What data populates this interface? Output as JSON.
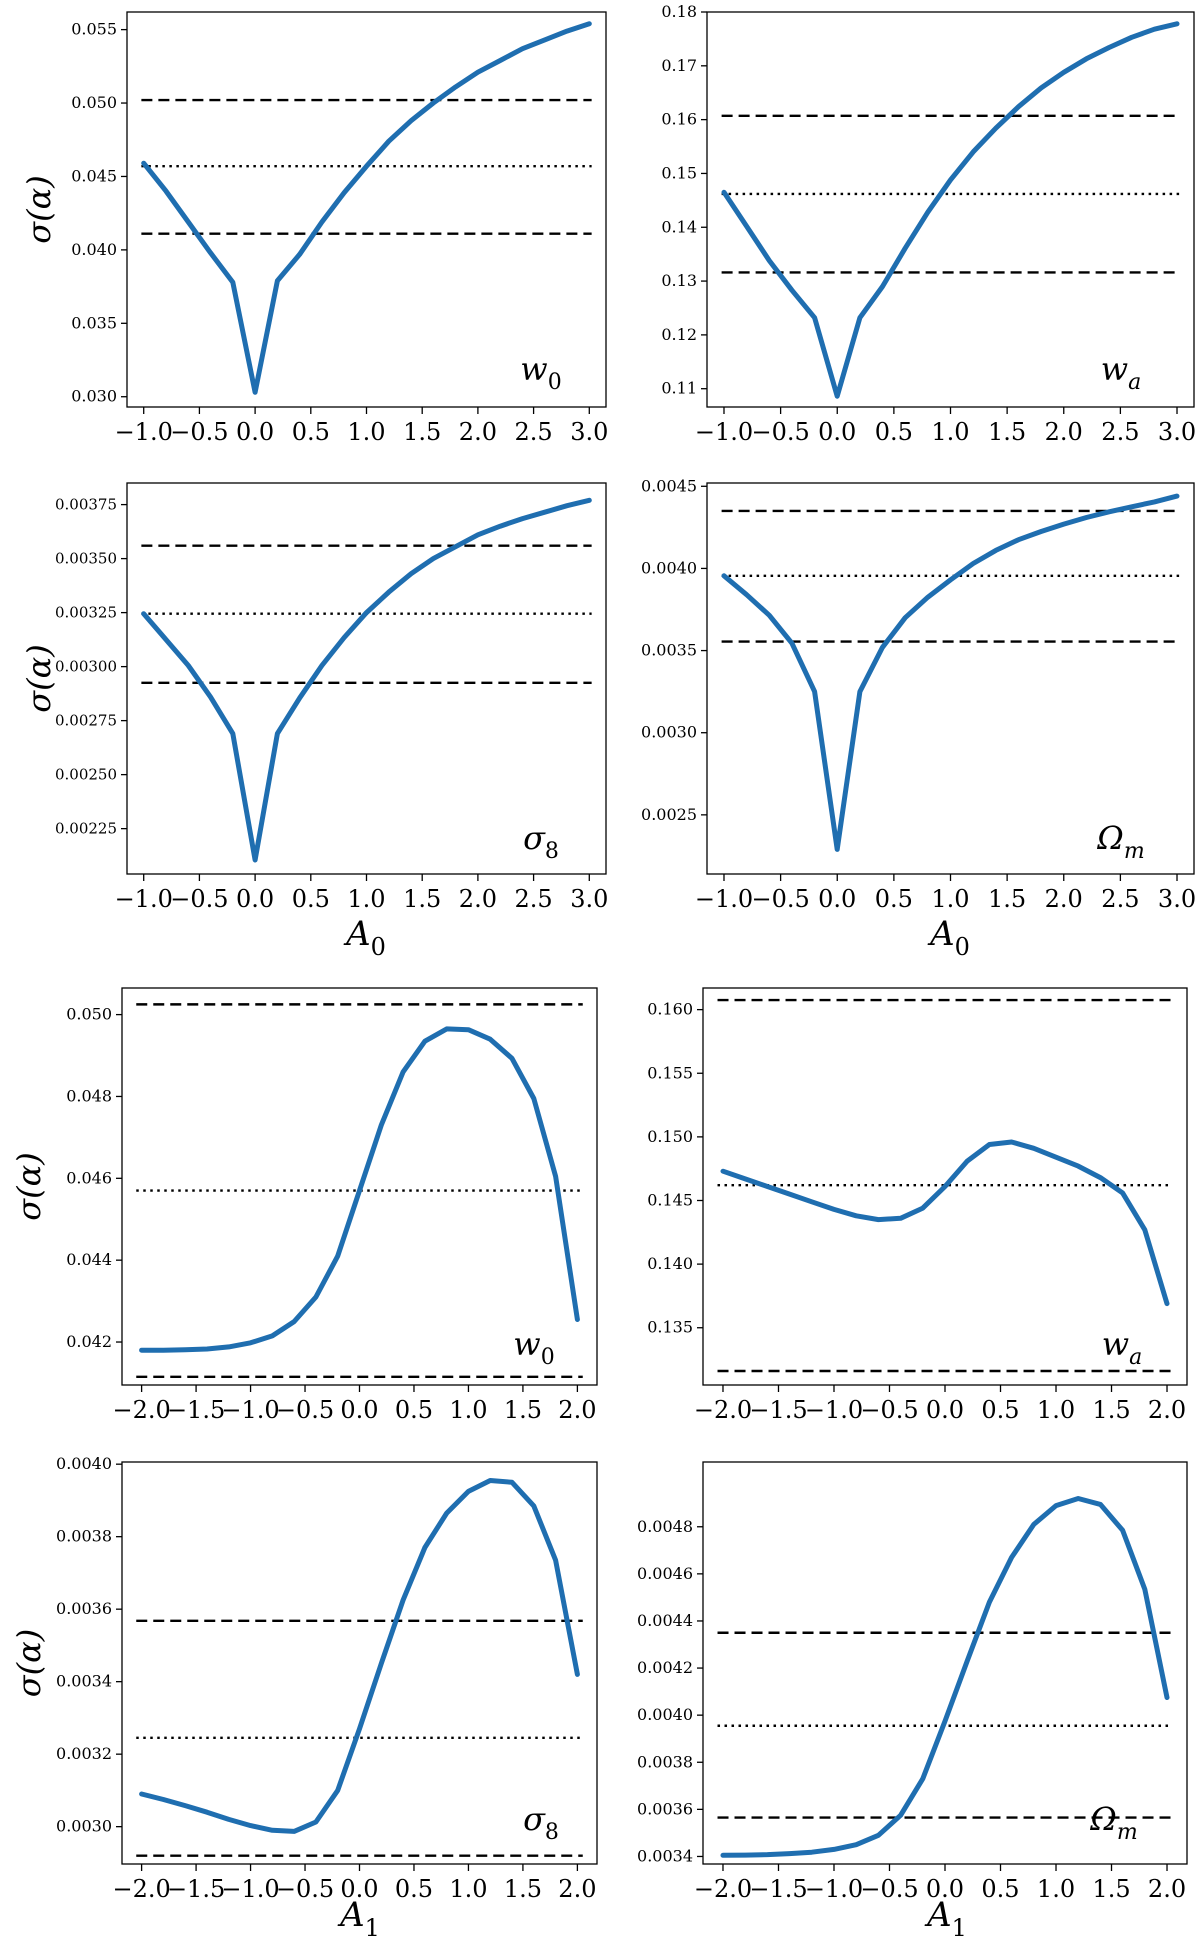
{
  "chart_data": [
    {
      "type": "line",
      "panel_label": "w0",
      "ylabel": "σ(α)",
      "xlabel": "",
      "xlim": [
        -1.15,
        3.15
      ],
      "ylim": [
        0.0293,
        0.0562
      ],
      "x_ticks": [
        "−1.0",
        "−0.5",
        "0.0",
        "0.5",
        "1.0",
        "1.5",
        "2.0",
        "2.5",
        "3.0"
      ],
      "y_ticks": [
        "0.030",
        "0.035",
        "0.040",
        "0.045",
        "0.050",
        "0.055"
      ],
      "reference_lines": {
        "upper_dashed": 0.0502,
        "dotted": 0.0457,
        "lower_dashed": 0.0411
      },
      "x": [
        -1.0,
        -0.8,
        -0.6,
        -0.4,
        -0.2,
        0.0,
        0.2,
        0.4,
        0.6,
        0.8,
        1.0,
        1.2,
        1.4,
        1.6,
        1.8,
        2.0,
        2.2,
        2.4,
        2.6,
        2.8,
        3.0
      ],
      "y": [
        0.0459,
        0.044,
        0.0419,
        0.0398,
        0.0378,
        0.0303,
        0.0379,
        0.0397,
        0.0419,
        0.0439,
        0.0457,
        0.0474,
        0.0488,
        0.05,
        0.0511,
        0.0521,
        0.0529,
        0.0537,
        0.0543,
        0.0549,
        0.0554
      ]
    },
    {
      "type": "line",
      "panel_label": "wa",
      "ylabel": "",
      "xlabel": "",
      "xlim": [
        -1.15,
        3.15
      ],
      "ylim": [
        0.1066,
        0.18
      ],
      "x_ticks": [
        "−1.0",
        "−0.5",
        "0.0",
        "0.5",
        "1.0",
        "1.5",
        "2.0",
        "2.5",
        "3.0"
      ],
      "y_ticks": [
        "0.11",
        "0.12",
        "0.13",
        "0.14",
        "0.15",
        "0.16",
        "0.17",
        "0.18"
      ],
      "reference_lines": {
        "upper_dashed": 0.1607,
        "dotted": 0.1462,
        "lower_dashed": 0.1316
      },
      "x": [
        -1.0,
        -0.8,
        -0.6,
        -0.4,
        -0.2,
        0.0,
        0.2,
        0.4,
        0.6,
        0.8,
        1.0,
        1.2,
        1.4,
        1.6,
        1.8,
        2.0,
        2.2,
        2.4,
        2.6,
        2.8,
        3.0
      ],
      "y": [
        0.1465,
        0.1402,
        0.1338,
        0.1283,
        0.1232,
        0.1086,
        0.1232,
        0.129,
        0.1361,
        0.1428,
        0.1488,
        0.154,
        0.1584,
        0.1624,
        0.1659,
        0.1688,
        0.1713,
        0.1734,
        0.1753,
        0.1768,
        0.1778
      ]
    },
    {
      "type": "line",
      "panel_label": "σ8",
      "ylabel": "σ(α)",
      "xlabel": "A0",
      "xlim": [
        -1.15,
        3.15
      ],
      "ylim": [
        0.00204,
        0.00385
      ],
      "x_ticks": [
        "−1.0",
        "−0.5",
        "0.0",
        "0.5",
        "1.0",
        "1.5",
        "2.0",
        "2.5",
        "3.0"
      ],
      "y_ticks": [
        "0.00225",
        "0.00250",
        "0.00275",
        "0.00300",
        "0.00325",
        "0.00350",
        "0.00375"
      ],
      "reference_lines": {
        "upper_dashed": 0.00356,
        "dotted": 0.003245,
        "lower_dashed": 0.002925
      },
      "x": [
        -1.0,
        -0.8,
        -0.6,
        -0.4,
        -0.2,
        0.0,
        0.2,
        0.4,
        0.6,
        0.8,
        1.0,
        1.2,
        1.4,
        1.6,
        1.8,
        2.0,
        2.2,
        2.4,
        2.6,
        2.8,
        3.0
      ],
      "y": [
        0.003245,
        0.003125,
        0.003005,
        0.00286,
        0.00269,
        0.002105,
        0.00269,
        0.002855,
        0.003005,
        0.003135,
        0.00325,
        0.003345,
        0.00343,
        0.0035,
        0.003555,
        0.00361,
        0.00365,
        0.003685,
        0.003715,
        0.003745,
        0.00377
      ]
    },
    {
      "type": "line",
      "panel_label": "Ωm",
      "ylabel": "",
      "xlabel": "A0",
      "xlim": [
        -1.15,
        3.15
      ],
      "ylim": [
        0.00214,
        0.00452
      ],
      "x_ticks": [
        "−1.0",
        "−0.5",
        "0.0",
        "0.5",
        "1.0",
        "1.5",
        "2.0",
        "2.5",
        "3.0"
      ],
      "y_ticks": [
        "0.0025",
        "0.0030",
        "0.0035",
        "0.0040",
        "0.0045"
      ],
      "reference_lines": {
        "upper_dashed": 0.00435,
        "dotted": 0.003955,
        "lower_dashed": 0.003555
      },
      "x": [
        -1.0,
        -0.8,
        -0.6,
        -0.4,
        -0.2,
        0.0,
        0.2,
        0.4,
        0.6,
        0.8,
        1.0,
        1.2,
        1.4,
        1.6,
        1.8,
        2.0,
        2.2,
        2.4,
        2.6,
        2.8,
        3.0
      ],
      "y": [
        0.003955,
        0.00384,
        0.003715,
        0.003545,
        0.00325,
        0.00229,
        0.00325,
        0.00352,
        0.0037,
        0.003825,
        0.00393,
        0.00403,
        0.00411,
        0.004175,
        0.004225,
        0.00427,
        0.00431,
        0.004345,
        0.004375,
        0.004405,
        0.00444
      ]
    },
    {
      "type": "line",
      "panel_label": "w0",
      "ylabel": "σ(α)",
      "xlabel": "",
      "xlim": [
        -2.18,
        2.18
      ],
      "ylim": [
        0.04095,
        0.05065
      ],
      "x_ticks": [
        "−2.0",
        "−1.5",
        "−1.0",
        "−0.5",
        "0.0",
        "0.5",
        "1.0",
        "1.5",
        "2.0"
      ],
      "y_ticks": [
        "0.042",
        "0.044",
        "0.046",
        "0.048",
        "0.050"
      ],
      "reference_lines": {
        "upper_dashed": 0.05025,
        "dotted": 0.0457,
        "lower_dashed": 0.04115
      },
      "x": [
        -2.0,
        -1.8,
        -1.6,
        -1.4,
        -1.2,
        -1.0,
        -0.8,
        -0.6,
        -0.4,
        -0.2,
        0.0,
        0.2,
        0.4,
        0.6,
        0.8,
        1.0,
        1.2,
        1.4,
        1.6,
        1.8,
        2.0
      ],
      "y": [
        0.0418,
        0.0418,
        0.04181,
        0.04183,
        0.04188,
        0.04198,
        0.04215,
        0.0425,
        0.0431,
        0.0441,
        0.0457,
        0.0473,
        0.0486,
        0.04935,
        0.04965,
        0.04963,
        0.0494,
        0.04893,
        0.04795,
        0.04605,
        0.04255
      ]
    },
    {
      "type": "line",
      "panel_label": "wa",
      "ylabel": "",
      "xlabel": "",
      "xlim": [
        -2.18,
        2.18
      ],
      "ylim": [
        0.1305,
        0.1617
      ],
      "x_ticks": [
        "−2.0",
        "−1.5",
        "−1.0",
        "−0.5",
        "0.0",
        "0.5",
        "1.0",
        "1.5",
        "2.0"
      ],
      "y_ticks": [
        "0.135",
        "0.140",
        "0.145",
        "0.150",
        "0.155",
        "0.160"
      ],
      "reference_lines": {
        "upper_dashed": 0.16075,
        "dotted": 0.1462,
        "lower_dashed": 0.1316
      },
      "x": [
        -2.0,
        -1.8,
        -1.6,
        -1.4,
        -1.2,
        -1.0,
        -0.8,
        -0.6,
        -0.4,
        -0.2,
        0.0,
        0.2,
        0.4,
        0.6,
        0.8,
        1.0,
        1.2,
        1.4,
        1.6,
        1.8,
        2.0
      ],
      "y": [
        0.1473,
        0.1467,
        0.1461,
        0.1455,
        0.1449,
        0.1443,
        0.1438,
        0.1435,
        0.1436,
        0.1444,
        0.1461,
        0.1481,
        0.1494,
        0.1496,
        0.1491,
        0.1484,
        0.1477,
        0.1468,
        0.1456,
        0.1427,
        0.1369
      ]
    },
    {
      "type": "line",
      "panel_label": "σ8",
      "ylabel": "σ(α)",
      "xlabel": "A1",
      "xlim": [
        -2.18,
        2.18
      ],
      "ylim": [
        0.002897,
        0.004006
      ],
      "x_ticks": [
        "−2.0",
        "−1.5",
        "−1.0",
        "−0.5",
        "0.0",
        "0.5",
        "1.0",
        "1.5",
        "2.0"
      ],
      "y_ticks": [
        "0.0030",
        "0.0032",
        "0.0034",
        "0.0036",
        "0.0038",
        "0.0040"
      ],
      "reference_lines": {
        "upper_dashed": 0.003568,
        "dotted": 0.003245,
        "lower_dashed": 0.00292
      },
      "x": [
        -2.0,
        -1.8,
        -1.6,
        -1.4,
        -1.2,
        -1.0,
        -0.8,
        -0.6,
        -0.4,
        -0.2,
        0.0,
        0.2,
        0.4,
        0.6,
        0.8,
        1.0,
        1.2,
        1.4,
        1.6,
        1.8,
        2.0
      ],
      "y": [
        0.00309,
        0.003075,
        0.003058,
        0.00304,
        0.00302,
        0.003003,
        0.00299,
        0.002987,
        0.003013,
        0.0031,
        0.00327,
        0.00345,
        0.003625,
        0.00377,
        0.003865,
        0.003925,
        0.003955,
        0.00395,
        0.003885,
        0.003735,
        0.00342
      ]
    },
    {
      "type": "line",
      "panel_label": "Ωm",
      "ylabel": "",
      "xlabel": "A1",
      "xlim": [
        -2.18,
        2.18
      ],
      "ylim": [
        0.003368,
        0.005075
      ],
      "x_ticks": [
        "−2.0",
        "−1.5",
        "−1.0",
        "−0.5",
        "0.0",
        "0.5",
        "1.0",
        "1.5",
        "2.0"
      ],
      "y_ticks": [
        "0.0034",
        "0.0036",
        "0.0038",
        "0.0040",
        "0.0042",
        "0.0044",
        "0.0046",
        "0.0048"
      ],
      "reference_lines": {
        "upper_dashed": 0.00435,
        "dotted": 0.003955,
        "lower_dashed": 0.003565
      },
      "x": [
        -2.0,
        -1.8,
        -1.6,
        -1.4,
        -1.2,
        -1.0,
        -0.8,
        -0.6,
        -0.4,
        -0.2,
        0.0,
        0.2,
        0.4,
        0.6,
        0.8,
        1.0,
        1.2,
        1.4,
        1.6,
        1.8,
        2.0
      ],
      "y": [
        0.003405,
        0.003406,
        0.003408,
        0.003412,
        0.003418,
        0.00343,
        0.00345,
        0.00349,
        0.003575,
        0.00373,
        0.003975,
        0.00423,
        0.00448,
        0.00467,
        0.00481,
        0.00489,
        0.00492,
        0.004895,
        0.004785,
        0.004535,
        0.004075
      ]
    }
  ],
  "style": {
    "line_color": "#1f6eb0",
    "ref_color": "#000000",
    "frame_color": "#000000"
  }
}
